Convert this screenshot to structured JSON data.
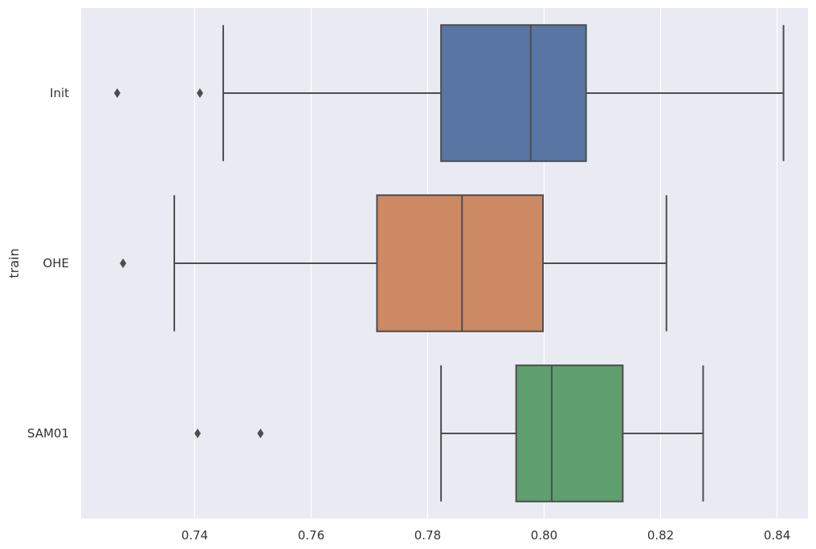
{
  "chart_data": {
    "type": "box",
    "orientation": "horizontal",
    "title": "",
    "xlabel": "",
    "ylabel": "train",
    "xlim": [
      0.7205,
      0.8453
    ],
    "xticks": [
      0.74,
      0.76,
      0.78,
      0.8,
      0.82,
      0.84
    ],
    "xtick_labels": [
      "0.74",
      "0.76",
      "0.78",
      "0.80",
      "0.82",
      "0.84"
    ],
    "grid": true,
    "background": "#EAEAF2",
    "line_color": "#4D4D4D",
    "categories": [
      "Init",
      "OHE",
      "SAM01"
    ],
    "boxes": [
      {
        "label": "Init",
        "color": "#5875A4",
        "whisker_low": 0.7449,
        "q1": 0.7823,
        "median": 0.7977,
        "q3": 0.8072,
        "whisker_high": 0.8411,
        "outliers": [
          0.7267,
          0.7409
        ]
      },
      {
        "label": "OHE",
        "color": "#CC8963",
        "whisker_low": 0.7365,
        "q1": 0.7713,
        "median": 0.7859,
        "q3": 0.7998,
        "whisker_high": 0.821,
        "outliers": [
          0.7277
        ]
      },
      {
        "label": "SAM01",
        "color": "#5F9E6E",
        "whisker_low": 0.7823,
        "q1": 0.7952,
        "median": 0.8013,
        "q3": 0.8135,
        "whisker_high": 0.8273,
        "outliers": [
          0.7405,
          0.7513
        ]
      }
    ]
  }
}
